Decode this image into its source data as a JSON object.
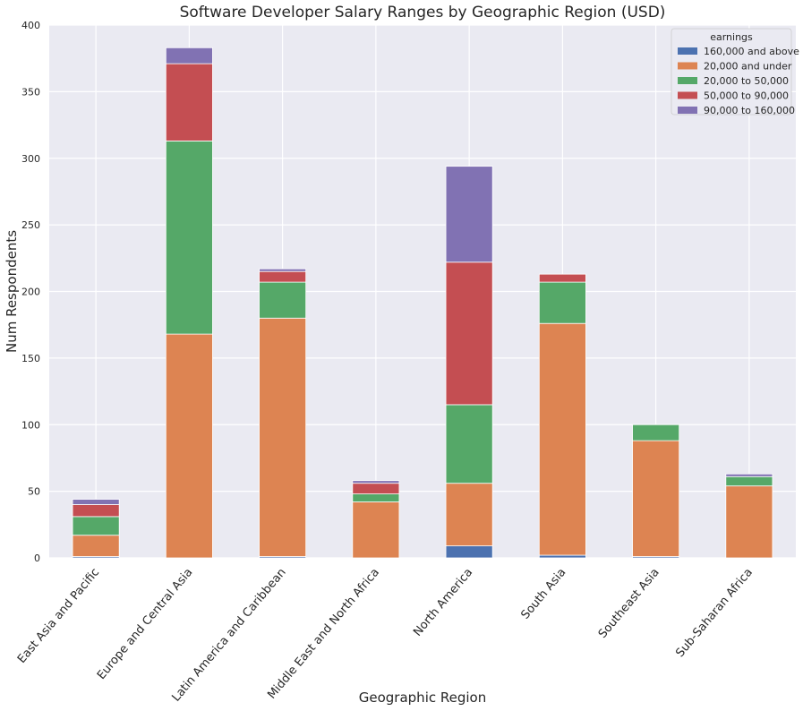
{
  "chart_data": {
    "type": "bar",
    "stacked": true,
    "title": "Software Developer Salary Ranges by Geographic Region (USD)",
    "xlabel": "Geographic Region",
    "ylabel": "Num Respondents",
    "ylim": [
      0,
      400
    ],
    "yticks": [
      0,
      50,
      100,
      150,
      200,
      250,
      300,
      350,
      400
    ],
    "grid": true,
    "legend": {
      "title": "earnings",
      "placement": "top-right"
    },
    "categories": [
      "East Asia and Pacific",
      "Europe and Central Asia",
      "Latin America and Caribbean",
      "Middle East and North Africa",
      "North America",
      "South Asia",
      "Southeast Asia",
      "Sub-Saharan Africa"
    ],
    "series": [
      {
        "name": "160,000 and above",
        "color": "#4c72b0",
        "values": [
          1,
          0,
          1,
          0,
          9,
          2,
          1,
          0
        ]
      },
      {
        "name": "20,000 and under",
        "color": "#dd8452",
        "values": [
          16,
          168,
          179,
          42,
          47,
          174,
          87,
          54
        ]
      },
      {
        "name": "20,000 to 50,000",
        "color": "#55a868",
        "values": [
          14,
          145,
          27,
          6,
          59,
          31,
          12,
          7
        ]
      },
      {
        "name": "50,000 to 90,000",
        "color": "#c44e52",
        "values": [
          9,
          58,
          8,
          8,
          107,
          6,
          0,
          0
        ]
      },
      {
        "name": "90,000 to 160,000",
        "color": "#8172b3",
        "values": [
          4,
          12,
          2,
          2,
          72,
          0,
          0,
          2
        ]
      }
    ]
  }
}
